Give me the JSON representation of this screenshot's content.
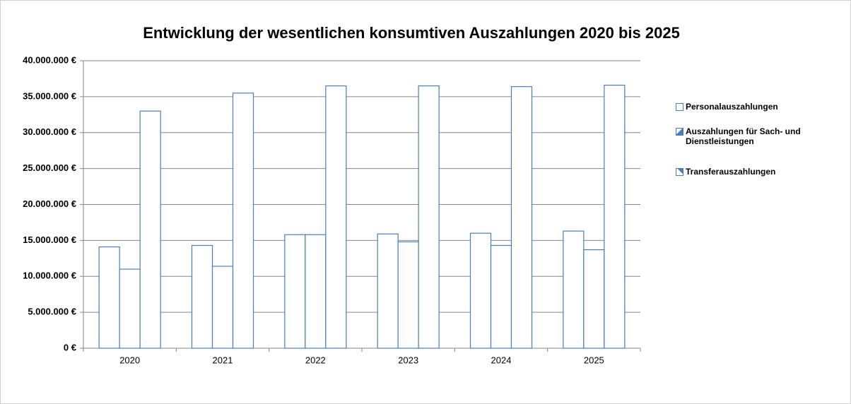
{
  "chart_data": {
    "type": "bar",
    "title": "Entwicklung der wesentlichen konsumtiven Auszahlungen 2020 bis 2025",
    "categories": [
      "2020",
      "2021",
      "2022",
      "2023",
      "2024",
      "2025"
    ],
    "series": [
      {
        "name": "Personalauszahlungen",
        "color": "#4a7ebb",
        "values": [
          14100000,
          14300000,
          15800000,
          15900000,
          16000000,
          16300000
        ]
      },
      {
        "name": "Auszahlungen für Sach- und Dienstleistungen",
        "color": "#4a7ebb",
        "values": [
          11000000,
          11400000,
          15800000,
          14800000,
          14300000,
          13700000
        ]
      },
      {
        "name": "Transferauszahlungen",
        "color": "#4a7ebb",
        "values": [
          33000000,
          35500000,
          36500000,
          36500000,
          36400000,
          36600000
        ]
      }
    ],
    "ylim": [
      0,
      40000000
    ],
    "yticks": [
      {
        "value": 0,
        "label": "0 €"
      },
      {
        "value": 5000000,
        "label": "5.000.000 €"
      },
      {
        "value": 10000000,
        "label": "10.000.000 €"
      },
      {
        "value": 15000000,
        "label": "15.000.000 €"
      },
      {
        "value": 20000000,
        "label": "20.000.000 €"
      },
      {
        "value": 25000000,
        "label": "25.000.000 €"
      },
      {
        "value": 30000000,
        "label": "30.000.000 €"
      },
      {
        "value": 35000000,
        "label": "35.000.000 €"
      },
      {
        "value": 40000000,
        "label": "40.000.000 €"
      }
    ],
    "grid": true,
    "legend": "right"
  }
}
